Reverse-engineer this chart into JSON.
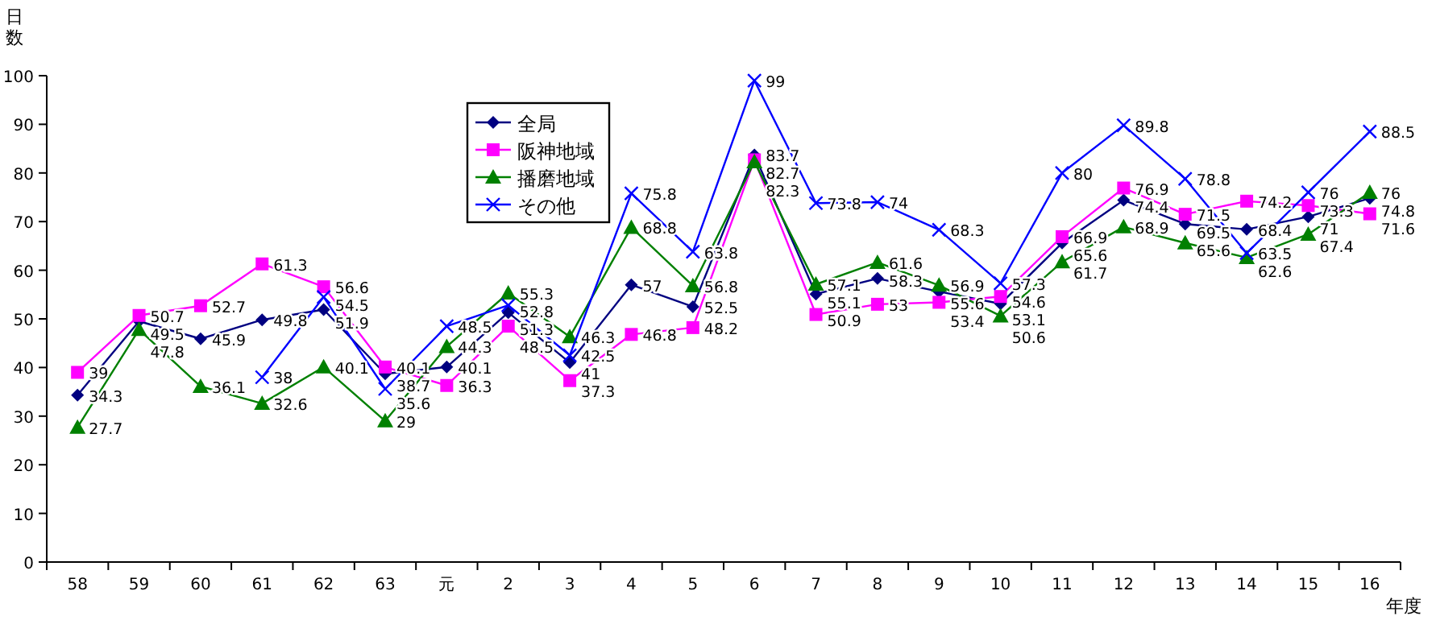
{
  "chart_data": {
    "type": "line",
    "xlabel": "年度",
    "ylabel": "日数",
    "categories": [
      "58",
      "59",
      "60",
      "61",
      "62",
      "63",
      "元",
      "2",
      "3",
      "4",
      "5",
      "6",
      "7",
      "8",
      "9",
      "10",
      "11",
      "12",
      "13",
      "14",
      "15",
      "16"
    ],
    "ylim": [
      0,
      100
    ],
    "yticks": [
      0,
      10,
      20,
      30,
      40,
      50,
      60,
      70,
      80,
      90,
      100
    ],
    "grid": false,
    "legend": "top left",
    "data_labels": true,
    "series": [
      {
        "name": "全局",
        "color": "#000080",
        "marker": "diamond",
        "values": [
          34.3,
          49.5,
          45.9,
          49.8,
          51.9,
          38.7,
          40.1,
          51.3,
          41,
          57,
          52.5,
          83.7,
          55.1,
          58.3,
          55.6,
          53.1,
          65.6,
          74.4,
          69.5,
          68.4,
          71,
          74.8
        ]
      },
      {
        "name": "阪神地域",
        "color": "#ff00ff",
        "marker": "square",
        "values": [
          39,
          50.7,
          52.7,
          61.3,
          56.6,
          40.1,
          36.3,
          48.5,
          37.3,
          46.8,
          48.2,
          82.7,
          50.9,
          53,
          53.4,
          54.6,
          66.9,
          76.9,
          71.5,
          74.2,
          73.3,
          71.6
        ]
      },
      {
        "name": "播磨地域",
        "color": "#008000",
        "marker": "triangle",
        "values": [
          27.7,
          47.8,
          36.1,
          32.6,
          40.1,
          29,
          44.3,
          55.3,
          46.3,
          68.8,
          56.8,
          82.3,
          57.1,
          61.6,
          56.9,
          50.6,
          61.7,
          68.9,
          65.6,
          62.6,
          67.4,
          76
        ]
      },
      {
        "name": "その他",
        "color": "#0000ff",
        "marker": "cross",
        "values": [
          null,
          null,
          null,
          38,
          54.5,
          35.6,
          48.5,
          52.8,
          42.5,
          75.8,
          63.8,
          99,
          73.8,
          74,
          68.3,
          57.3,
          80,
          89.8,
          78.8,
          63.5,
          76,
          88.5
        ]
      }
    ]
  }
}
